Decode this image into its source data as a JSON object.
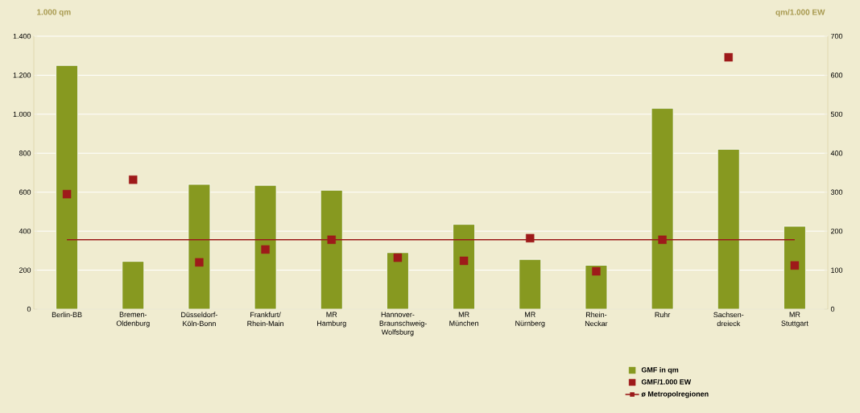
{
  "chart_data": {
    "type": "bar",
    "ylabel": "1.000 qm",
    "y2label": "qm/1.000 EW",
    "categories": [
      "Berlin-BB",
      "Bremen-Oldenburg",
      "Düsseldorf-Köln-Bonn",
      "Frankfurt/ Rhein-Main",
      "MR Hamburg",
      "Hannover-Braunschweig-Wolfsburg",
      "MR München",
      "MR Nürnberg",
      "Rhein-Neckar",
      "Ruhr",
      "Sachsen-dreieck",
      "MR Stuttgart"
    ],
    "series": [
      {
        "name": "GMF in qm",
        "color": "#879920",
        "values": [
          1250,
          245,
          640,
          635,
          610,
          290,
          435,
          255,
          225,
          1030,
          820,
          425
        ]
      },
      {
        "name": "GMF/1.000 EW",
        "type": "scatter",
        "axis": "y2",
        "marker": "square",
        "color": "#9e1a1a",
        "values": [
          295,
          332,
          120,
          153,
          178,
          132,
          124,
          182,
          97,
          178,
          646,
          112
        ]
      }
    ],
    "ref_lines": [
      {
        "axis": "y2",
        "value": 178,
        "label": "ø Metropolregionen",
        "color": "#9b1b1b"
      }
    ],
    "ylim": [
      0,
      1400
    ],
    "yticks": [
      0,
      200,
      400,
      600,
      800,
      {
        "value": 1000,
        "label": "1.000"
      },
      {
        "value": 1200,
        "label": "1.200"
      },
      {
        "value": 1400,
        "label": "1.400"
      }
    ],
    "y2lim": [
      0,
      700
    ],
    "y2ticks": [
      0,
      100,
      200,
      300,
      400,
      500,
      600,
      700
    ],
    "grid": "y",
    "legend": "bottom right"
  }
}
